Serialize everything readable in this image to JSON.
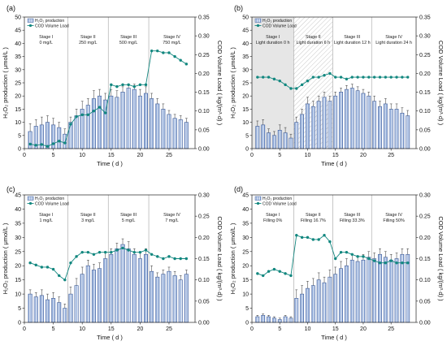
{
  "colors": {
    "bar_fill": "#7f9fd4",
    "bar_edge": "#3b5b9c",
    "error_bar": "#333333",
    "cod": "#12877f",
    "stage_line": "#a0a0a0",
    "frame": "#222222"
  },
  "chart_data": [
    {
      "panel": "(a)",
      "type": "bar",
      "xlabel": "Time ( d )",
      "ylabel": "H₂O₂ production ( μmol/L )",
      "y2label": "COD Volume Load ( kg/(m³·d) )",
      "xlim": [
        0,
        29.5
      ],
      "ylim": [
        0,
        50
      ],
      "y2lim": [
        0,
        0.35
      ],
      "xticks": [
        0,
        5,
        10,
        15,
        20,
        25
      ],
      "yticks": [
        0,
        5,
        10,
        15,
        20,
        25,
        30,
        35,
        40,
        45,
        50
      ],
      "y2ticks": [
        "0.00",
        "0.05",
        "0.10",
        "0.15",
        "0.20",
        "0.25",
        "0.30",
        "0.35"
      ],
      "grid": false,
      "legend": "top-left",
      "x": [
        1,
        2,
        3,
        4,
        5,
        6,
        7,
        8,
        9,
        10,
        11,
        12,
        13,
        14,
        15,
        16,
        17,
        18,
        19,
        20,
        21,
        22,
        23,
        24,
        25,
        26,
        27,
        28
      ],
      "stage_boundaries": [
        7.5,
        14.5,
        21.5
      ],
      "stages": [
        {
          "name": "Stage I",
          "detail": "0 mg/L"
        },
        {
          "name": "Stage II",
          "detail": "250 mg/L"
        },
        {
          "name": "Stage III",
          "detail": "500 mg/L"
        },
        {
          "name": "Stage IV",
          "detail": "750 mg/L"
        }
      ],
      "series": [
        {
          "name": "H₂O₂ production",
          "type": "bar",
          "values": [
            6.5,
            8.5,
            9,
            10,
            9,
            8,
            5.5,
            10,
            12.5,
            15,
            16.5,
            19,
            20,
            18.5,
            20,
            19.5,
            21.5,
            23,
            22.5,
            20,
            21,
            19,
            17,
            15,
            13,
            11.5,
            11,
            10
          ],
          "errors": [
            3,
            2.5,
            3,
            2.5,
            2.5,
            2,
            2,
            2,
            2.5,
            3,
            2.5,
            3,
            2.5,
            2.5,
            2.5,
            2.5,
            2,
            1.5,
            2,
            2.5,
            2.5,
            2,
            2,
            2,
            1.5,
            1.5,
            1.5,
            1.5
          ]
        },
        {
          "name": "COD Volume Load",
          "type": "line",
          "values": [
            0.012,
            0.009,
            0.011,
            0.006,
            0.013,
            0.02,
            0.015,
            0.065,
            0.085,
            0.09,
            0.09,
            0.1,
            0.11,
            0.095,
            0.17,
            0.165,
            0.17,
            0.17,
            0.165,
            0.17,
            0.17,
            0.26,
            0.26,
            0.255,
            0.255,
            0.245,
            0.235,
            0.225
          ]
        }
      ]
    },
    {
      "panel": "(b)",
      "type": "bar",
      "xlabel": "Time ( d )",
      "ylabel": "H₂O₂ production ( μmol/L )",
      "y2label": "COD Volume Load ( kg/(m³·d) )",
      "xlim": [
        0,
        29.5
      ],
      "ylim": [
        0,
        50
      ],
      "y2lim": [
        0,
        0.35
      ],
      "xticks": [
        0,
        5,
        10,
        15,
        20,
        25
      ],
      "yticks": [
        0,
        5,
        10,
        15,
        20,
        25,
        30,
        35,
        40,
        45,
        50
      ],
      "y2ticks": [
        "0.00",
        "0.05",
        "0.10",
        "0.15",
        "0.20",
        "0.25",
        "0.30",
        "0.35"
      ],
      "grid": false,
      "legend": "top-left",
      "x": [
        1,
        2,
        3,
        4,
        5,
        6,
        7,
        8,
        9,
        10,
        11,
        12,
        13,
        14,
        15,
        16,
        17,
        18,
        19,
        20,
        21,
        22,
        23,
        24,
        25,
        26,
        27,
        28
      ],
      "stage_boundaries": [
        7.5,
        14.5,
        21.5
      ],
      "shaded": [
        {
          "from": 0,
          "to": 7.5,
          "color": "#e6e6e6"
        },
        {
          "from": 7.5,
          "to": 14.5,
          "color": "#c8c8c8",
          "hatched": true
        }
      ],
      "stages": [
        {
          "name": "Stage I",
          "detail": "Light duration 0 h"
        },
        {
          "name": "Stage II",
          "detail": "Light duration 6 h"
        },
        {
          "name": "Stage III",
          "detail": "Light duration 12 h"
        },
        {
          "name": "Stage IV",
          "detail": "Light duration 24 h"
        }
      ],
      "series": [
        {
          "name": "H₂O₂ production",
          "type": "bar",
          "values": [
            8.5,
            9,
            6,
            5,
            7,
            6,
            4,
            10,
            13,
            17,
            16,
            18,
            19.5,
            18,
            20,
            21.5,
            22.5,
            23,
            22,
            21,
            20,
            18,
            16,
            17,
            15,
            15,
            13.5,
            12.5
          ],
          "errors": [
            2,
            2,
            1.5,
            1.5,
            2,
            2,
            1.5,
            2,
            2,
            2.5,
            2,
            2,
            2,
            2,
            1.5,
            1.5,
            1.5,
            1.5,
            1.5,
            1.5,
            1.5,
            2,
            2,
            2,
            2,
            2,
            2,
            2
          ]
        },
        {
          "name": "COD Volume Load",
          "type": "line",
          "values": [
            0.19,
            0.19,
            0.19,
            0.185,
            0.18,
            0.17,
            0.16,
            0.16,
            0.17,
            0.18,
            0.19,
            0.19,
            0.195,
            0.2,
            0.19,
            0.19,
            0.185,
            0.19,
            0.19,
            0.19,
            0.19,
            0.19,
            0.19,
            0.19,
            0.19,
            0.19,
            0.19,
            0.19
          ]
        }
      ]
    },
    {
      "panel": "(c)",
      "type": "bar",
      "xlabel": "Time ( d )",
      "ylabel": "H₂O₂ production ( μmol/L )",
      "y2label": "COD Volume Load ( kg/(m³·d) )",
      "xlim": [
        0,
        29.5
      ],
      "ylim": [
        0,
        45
      ],
      "y2lim": [
        0,
        0.3
      ],
      "xticks": [
        0,
        5,
        10,
        15,
        20,
        25
      ],
      "yticks": [
        0,
        5,
        10,
        15,
        20,
        25,
        30,
        35,
        40,
        45
      ],
      "y2ticks": [
        "0.00",
        "0.05",
        "0.10",
        "0.15",
        "0.20",
        "0.25",
        "0.30"
      ],
      "grid": false,
      "legend": "top-left",
      "x": [
        1,
        2,
        3,
        4,
        5,
        6,
        7,
        8,
        9,
        10,
        11,
        12,
        13,
        14,
        15,
        16,
        17,
        18,
        19,
        20,
        21,
        22,
        23,
        24,
        25,
        26,
        27,
        28
      ],
      "stage_boundaries": [
        7.5,
        14.5,
        21.5
      ],
      "stages": [
        {
          "name": "Stage I",
          "detail": "1 mg/L"
        },
        {
          "name": "Stage II",
          "detail": "3 mg/L"
        },
        {
          "name": "Stage III",
          "detail": "5 mg/L"
        },
        {
          "name": "Stage IV",
          "detail": "7 mg/L"
        }
      ],
      "series": [
        {
          "name": "H₂O₂ production",
          "type": "bar",
          "values": [
            10,
            9,
            9.5,
            8,
            8.5,
            7,
            5,
            10,
            13,
            17,
            20,
            18.5,
            19,
            22.5,
            24,
            26,
            27.5,
            26,
            24,
            22.5,
            24,
            18,
            16,
            17,
            18,
            16.5,
            15,
            17
          ],
          "errors": [
            1.5,
            1.5,
            2,
            2,
            2,
            2,
            1.5,
            2.5,
            2.5,
            2.5,
            2,
            2,
            2,
            2.5,
            2,
            2,
            2,
            2.5,
            2,
            2,
            2,
            2,
            1.5,
            1.5,
            1.5,
            1.5,
            1.5,
            1.5
          ]
        },
        {
          "name": "COD Volume Load",
          "type": "line",
          "values": [
            0.14,
            0.135,
            0.13,
            0.13,
            0.125,
            0.11,
            0.1,
            0.14,
            0.155,
            0.165,
            0.165,
            0.16,
            0.165,
            0.165,
            0.165,
            0.17,
            0.175,
            0.17,
            0.165,
            0.165,
            0.17,
            0.16,
            0.155,
            0.15,
            0.155,
            0.15,
            0.15,
            0.15
          ]
        }
      ]
    },
    {
      "panel": "(d)",
      "type": "bar",
      "xlabel": "Time ( d )",
      "ylabel": "H₂O₂ production ( μmol/L )",
      "y2label": "COD Volume Load ( kg/(m³·d) )",
      "xlim": [
        0,
        29.5
      ],
      "ylim": [
        0,
        45
      ],
      "y2lim": [
        0,
        0.3
      ],
      "xticks": [
        0,
        5,
        10,
        15,
        20,
        25
      ],
      "yticks": [
        0,
        5,
        10,
        15,
        20,
        25,
        30,
        35,
        40,
        45
      ],
      "y2ticks": [
        "0.00",
        "0.05",
        "0.10",
        "0.15",
        "0.20",
        "0.25",
        "0.30"
      ],
      "grid": false,
      "legend": "top-left",
      "x": [
        1,
        2,
        3,
        4,
        5,
        6,
        7,
        8,
        9,
        10,
        11,
        12,
        13,
        14,
        15,
        16,
        17,
        18,
        19,
        20,
        21,
        22,
        23,
        24,
        25,
        26,
        27,
        28
      ],
      "stage_boundaries": [
        7.5,
        14.5,
        21.5
      ],
      "stages": [
        {
          "name": "Stage I",
          "detail": "Filling 0%"
        },
        {
          "name": "Stage II",
          "detail": "Filling 16.7%"
        },
        {
          "name": "Stage III",
          "detail": "Filling 33.3%"
        },
        {
          "name": "Stage IV",
          "detail": "Filling 50%"
        }
      ],
      "series": [
        {
          "name": "H₂O₂ production",
          "type": "bar",
          "values": [
            2,
            2.5,
            2,
            1.5,
            1,
            2,
            1.5,
            8.5,
            10,
            12,
            13,
            15,
            14,
            16,
            17,
            19,
            20,
            22,
            21.5,
            22,
            23,
            22.5,
            24,
            23,
            22,
            22.5,
            24,
            24
          ],
          "errors": [
            0.5,
            0.5,
            0.5,
            0.5,
            0.5,
            0.5,
            0.5,
            3,
            3,
            2.5,
            2.5,
            2.5,
            2,
            2.5,
            2.5,
            2.5,
            2.5,
            2,
            2,
            2,
            2,
            2,
            2,
            2,
            2,
            2,
            2,
            2
          ]
        },
        {
          "name": "COD Volume Load",
          "type": "line",
          "values": [
            0.115,
            0.11,
            0.12,
            0.125,
            0.12,
            0.115,
            0.11,
            0.205,
            0.2,
            0.2,
            0.195,
            0.195,
            0.205,
            0.19,
            0.15,
            0.165,
            0.165,
            0.16,
            0.155,
            0.155,
            0.15,
            0.145,
            0.14,
            0.14,
            0.145,
            0.14,
            0.14,
            0.14
          ]
        }
      ]
    }
  ]
}
